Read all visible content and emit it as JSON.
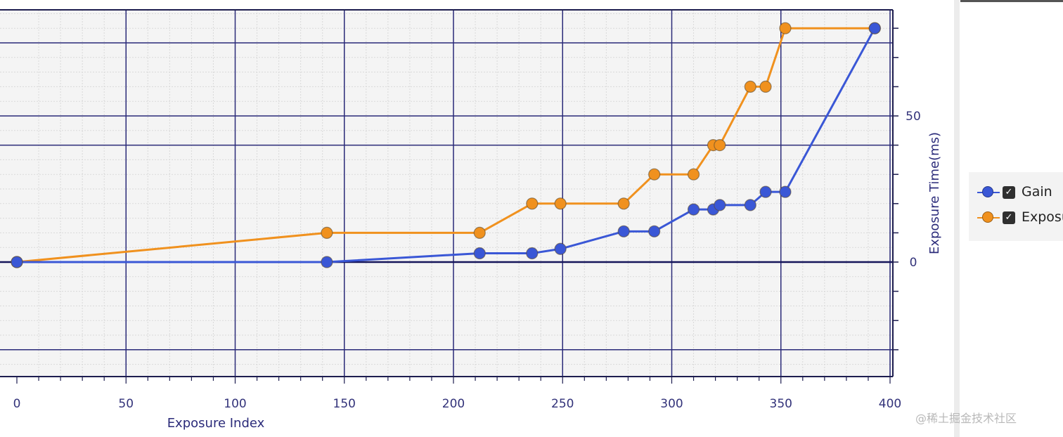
{
  "chart_data": {
    "type": "line",
    "xlabel": "Exposure Index",
    "ylabel": "Exposure Time(ms)",
    "xlim": [
      -8,
      400
    ],
    "ylim": [
      -38,
      86
    ],
    "x_ticks": [
      "0",
      "50",
      "100",
      "150",
      "200",
      "250",
      "300",
      "350",
      "400"
    ],
    "y_ticks": [
      "0",
      "50"
    ],
    "grid": true,
    "legend_position": "right",
    "series": [
      {
        "name": "Gain",
        "color": "#3a57d6",
        "x": [
          0,
          142,
          212,
          236,
          249,
          278,
          292,
          310,
          319,
          322,
          336,
          343,
          352,
          393
        ],
        "y": [
          0,
          0,
          3,
          3,
          4.5,
          10.5,
          10.5,
          18,
          18,
          19.5,
          19.5,
          24,
          24,
          80
        ]
      },
      {
        "name": "Exposu",
        "color": "#f0911e",
        "x": [
          0,
          142,
          212,
          236,
          249,
          278,
          292,
          310,
          319,
          322,
          336,
          343,
          352,
          393
        ],
        "y": [
          0,
          10,
          10,
          20,
          20,
          20,
          30,
          30,
          40,
          40,
          60,
          60,
          80,
          80
        ]
      }
    ]
  },
  "legend": {
    "items": [
      {
        "label": "Gain",
        "color": "#3a57d6",
        "check": "✓"
      },
      {
        "label": "Exposu",
        "color": "#f0911e",
        "check": "✓"
      }
    ]
  },
  "watermark": "@稀土掘金技术社区"
}
